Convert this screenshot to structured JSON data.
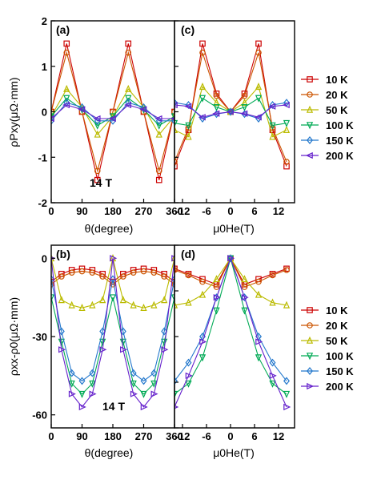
{
  "temperatures": [
    "10 K",
    "20 K",
    "50 K",
    "100 K",
    "150 K",
    "200 K"
  ],
  "colors": [
    "#cc0000",
    "#cc5500",
    "#bbbb00",
    "#00aa55",
    "#2277cc",
    "#6622cc"
  ],
  "markers": [
    "square",
    "circle",
    "triangle-up",
    "triangle-down",
    "diamond",
    "triangle-left",
    "triangle-right"
  ],
  "field_annotation": "14 T",
  "chart_data": [
    {
      "panel": "(a)",
      "type": "line",
      "xlabel": "θ(degree)",
      "ylabel": "ρPxy(μΩ·mm)",
      "xlim": [
        0,
        360
      ],
      "ylim": [
        -2,
        2
      ],
      "xticks": [
        "0",
        "90",
        "180",
        "270",
        "360"
      ],
      "yticks": [
        "-2",
        "-1",
        "0",
        "1",
        "2"
      ],
      "x": [
        0,
        45,
        90,
        135,
        180,
        225,
        270,
        315,
        360
      ],
      "series": [
        {
          "name": "10 K",
          "values": [
            0,
            1.5,
            0,
            -1.5,
            0,
            1.5,
            0,
            -1.5,
            0
          ]
        },
        {
          "name": "20 K",
          "values": [
            0,
            1.3,
            0,
            -1.3,
            0,
            1.3,
            0,
            -1.3,
            0
          ]
        },
        {
          "name": "50 K",
          "values": [
            -0.1,
            0.5,
            0.1,
            -0.5,
            -0.1,
            0.5,
            0.1,
            -0.5,
            -0.1
          ]
        },
        {
          "name": "100 K",
          "values": [
            -0.1,
            0.3,
            0.05,
            -0.3,
            -0.1,
            0.3,
            0.05,
            -0.3,
            -0.1
          ]
        },
        {
          "name": "150 K",
          "values": [
            -0.2,
            0.2,
            0.1,
            -0.2,
            -0.2,
            0.2,
            0.1,
            -0.2,
            -0.2
          ]
        },
        {
          "name": "200 K",
          "values": [
            -0.15,
            0.15,
            0.05,
            -0.15,
            -0.15,
            0.15,
            0.05,
            -0.15,
            -0.15
          ]
        }
      ]
    },
    {
      "panel": "(c)",
      "type": "line",
      "xlabel": "μ0He(T)",
      "ylabel": "",
      "xlim": [
        -14,
        16
      ],
      "ylim": [
        -2,
        2
      ],
      "xticks": [
        "-12",
        "-6",
        "0",
        "6",
        "12"
      ],
      "x": [
        -14,
        -10.5,
        -7,
        -3.5,
        0,
        3.5,
        7,
        10.5,
        14
      ],
      "series": [
        {
          "name": "10 K",
          "values": [
            -1.2,
            -0.4,
            1.5,
            0.4,
            0,
            0.4,
            1.5,
            -0.4,
            -1.2
          ]
        },
        {
          "name": "20 K",
          "values": [
            -1.1,
            -0.35,
            1.3,
            0.35,
            0,
            0.35,
            1.3,
            -0.35,
            -1.1
          ]
        },
        {
          "name": "50 K",
          "values": [
            -0.4,
            -0.55,
            0.55,
            0.2,
            0,
            0.2,
            0.55,
            -0.55,
            -0.4
          ]
        },
        {
          "name": "100 K",
          "values": [
            -0.25,
            -0.3,
            0.3,
            0.1,
            0,
            0.1,
            0.3,
            -0.3,
            -0.25
          ]
        },
        {
          "name": "150 K",
          "values": [
            0.2,
            0.15,
            -0.15,
            -0.05,
            0,
            -0.05,
            -0.15,
            0.15,
            0.2
          ]
        },
        {
          "name": "200 K",
          "values": [
            0.15,
            0.12,
            -0.12,
            -0.04,
            0,
            -0.04,
            -0.12,
            0.12,
            0.15
          ]
        }
      ]
    },
    {
      "panel": "(b)",
      "type": "line",
      "xlabel": "θ(degree)",
      "ylabel": "ρxx-ρ0(μΩ·mm)",
      "xlim": [
        0,
        360
      ],
      "ylim": [
        -65,
        5
      ],
      "xticks": [
        "0",
        "90",
        "180",
        "270",
        "360"
      ],
      "yticks": [
        "-60",
        "-30",
        "0"
      ],
      "x": [
        0,
        30,
        60,
        90,
        120,
        150,
        180,
        210,
        240,
        270,
        300,
        330,
        360
      ],
      "series": [
        {
          "name": "10 K",
          "values": [
            -9,
            -6,
            -4.5,
            -4,
            -4.5,
            -6,
            -9,
            -6,
            -4.5,
            -4,
            -4.5,
            -6,
            -9
          ]
        },
        {
          "name": "20 K",
          "values": [
            -10,
            -7,
            -5.5,
            -5,
            -5.5,
            -7,
            -10,
            -7,
            -5.5,
            -5,
            -5.5,
            -7,
            -10
          ]
        },
        {
          "name": "50 K",
          "values": [
            0,
            -16,
            -18,
            -19,
            -18,
            -16,
            0,
            -16,
            -18,
            -19,
            -18,
            -16,
            0
          ]
        },
        {
          "name": "100 K",
          "values": [
            -15,
            -32,
            -48,
            -52,
            -48,
            -32,
            -15,
            -32,
            -48,
            -52,
            -48,
            -32,
            -15
          ]
        },
        {
          "name": "150 K",
          "values": [
            -8,
            -28,
            -44,
            -47,
            -44,
            -28,
            -8,
            -28,
            -44,
            -47,
            -44,
            -28,
            -8
          ]
        },
        {
          "name": "200 K",
          "values": [
            0,
            -35,
            -52,
            -57,
            -52,
            -35,
            0,
            -35,
            -52,
            -57,
            -52,
            -35,
            0
          ]
        }
      ]
    },
    {
      "panel": "(d)",
      "type": "line",
      "xlabel": "μ0He(T)",
      "ylabel": "",
      "xlim": [
        -14,
        16
      ],
      "ylim": [
        -65,
        5
      ],
      "xticks": [
        "-12",
        "-6",
        "0",
        "6",
        "12"
      ],
      "x": [
        -14,
        -10.5,
        -7,
        -3.5,
        0,
        3.5,
        7,
        10.5,
        14
      ],
      "series": [
        {
          "name": "10 K",
          "values": [
            -4,
            -6,
            -8,
            -10,
            0,
            -10,
            -8,
            -6,
            -4
          ]
        },
        {
          "name": "20 K",
          "values": [
            -4.5,
            -6.5,
            -9,
            -11,
            0,
            -11,
            -9,
            -6.5,
            -4.5
          ]
        },
        {
          "name": "50 K",
          "values": [
            -18,
            -17,
            -14,
            -8,
            0,
            -8,
            -14,
            -17,
            -18
          ]
        },
        {
          "name": "100 K",
          "values": [
            -52,
            -48,
            -38,
            -20,
            0,
            -20,
            -38,
            -48,
            -52
          ]
        },
        {
          "name": "150 K",
          "values": [
            -47,
            -40,
            -30,
            -15,
            0,
            -15,
            -30,
            -40,
            -47
          ]
        },
        {
          "name": "200 K",
          "values": [
            -57,
            -45,
            -32,
            -15,
            0,
            -15,
            -32,
            -45,
            -57
          ]
        }
      ]
    }
  ]
}
